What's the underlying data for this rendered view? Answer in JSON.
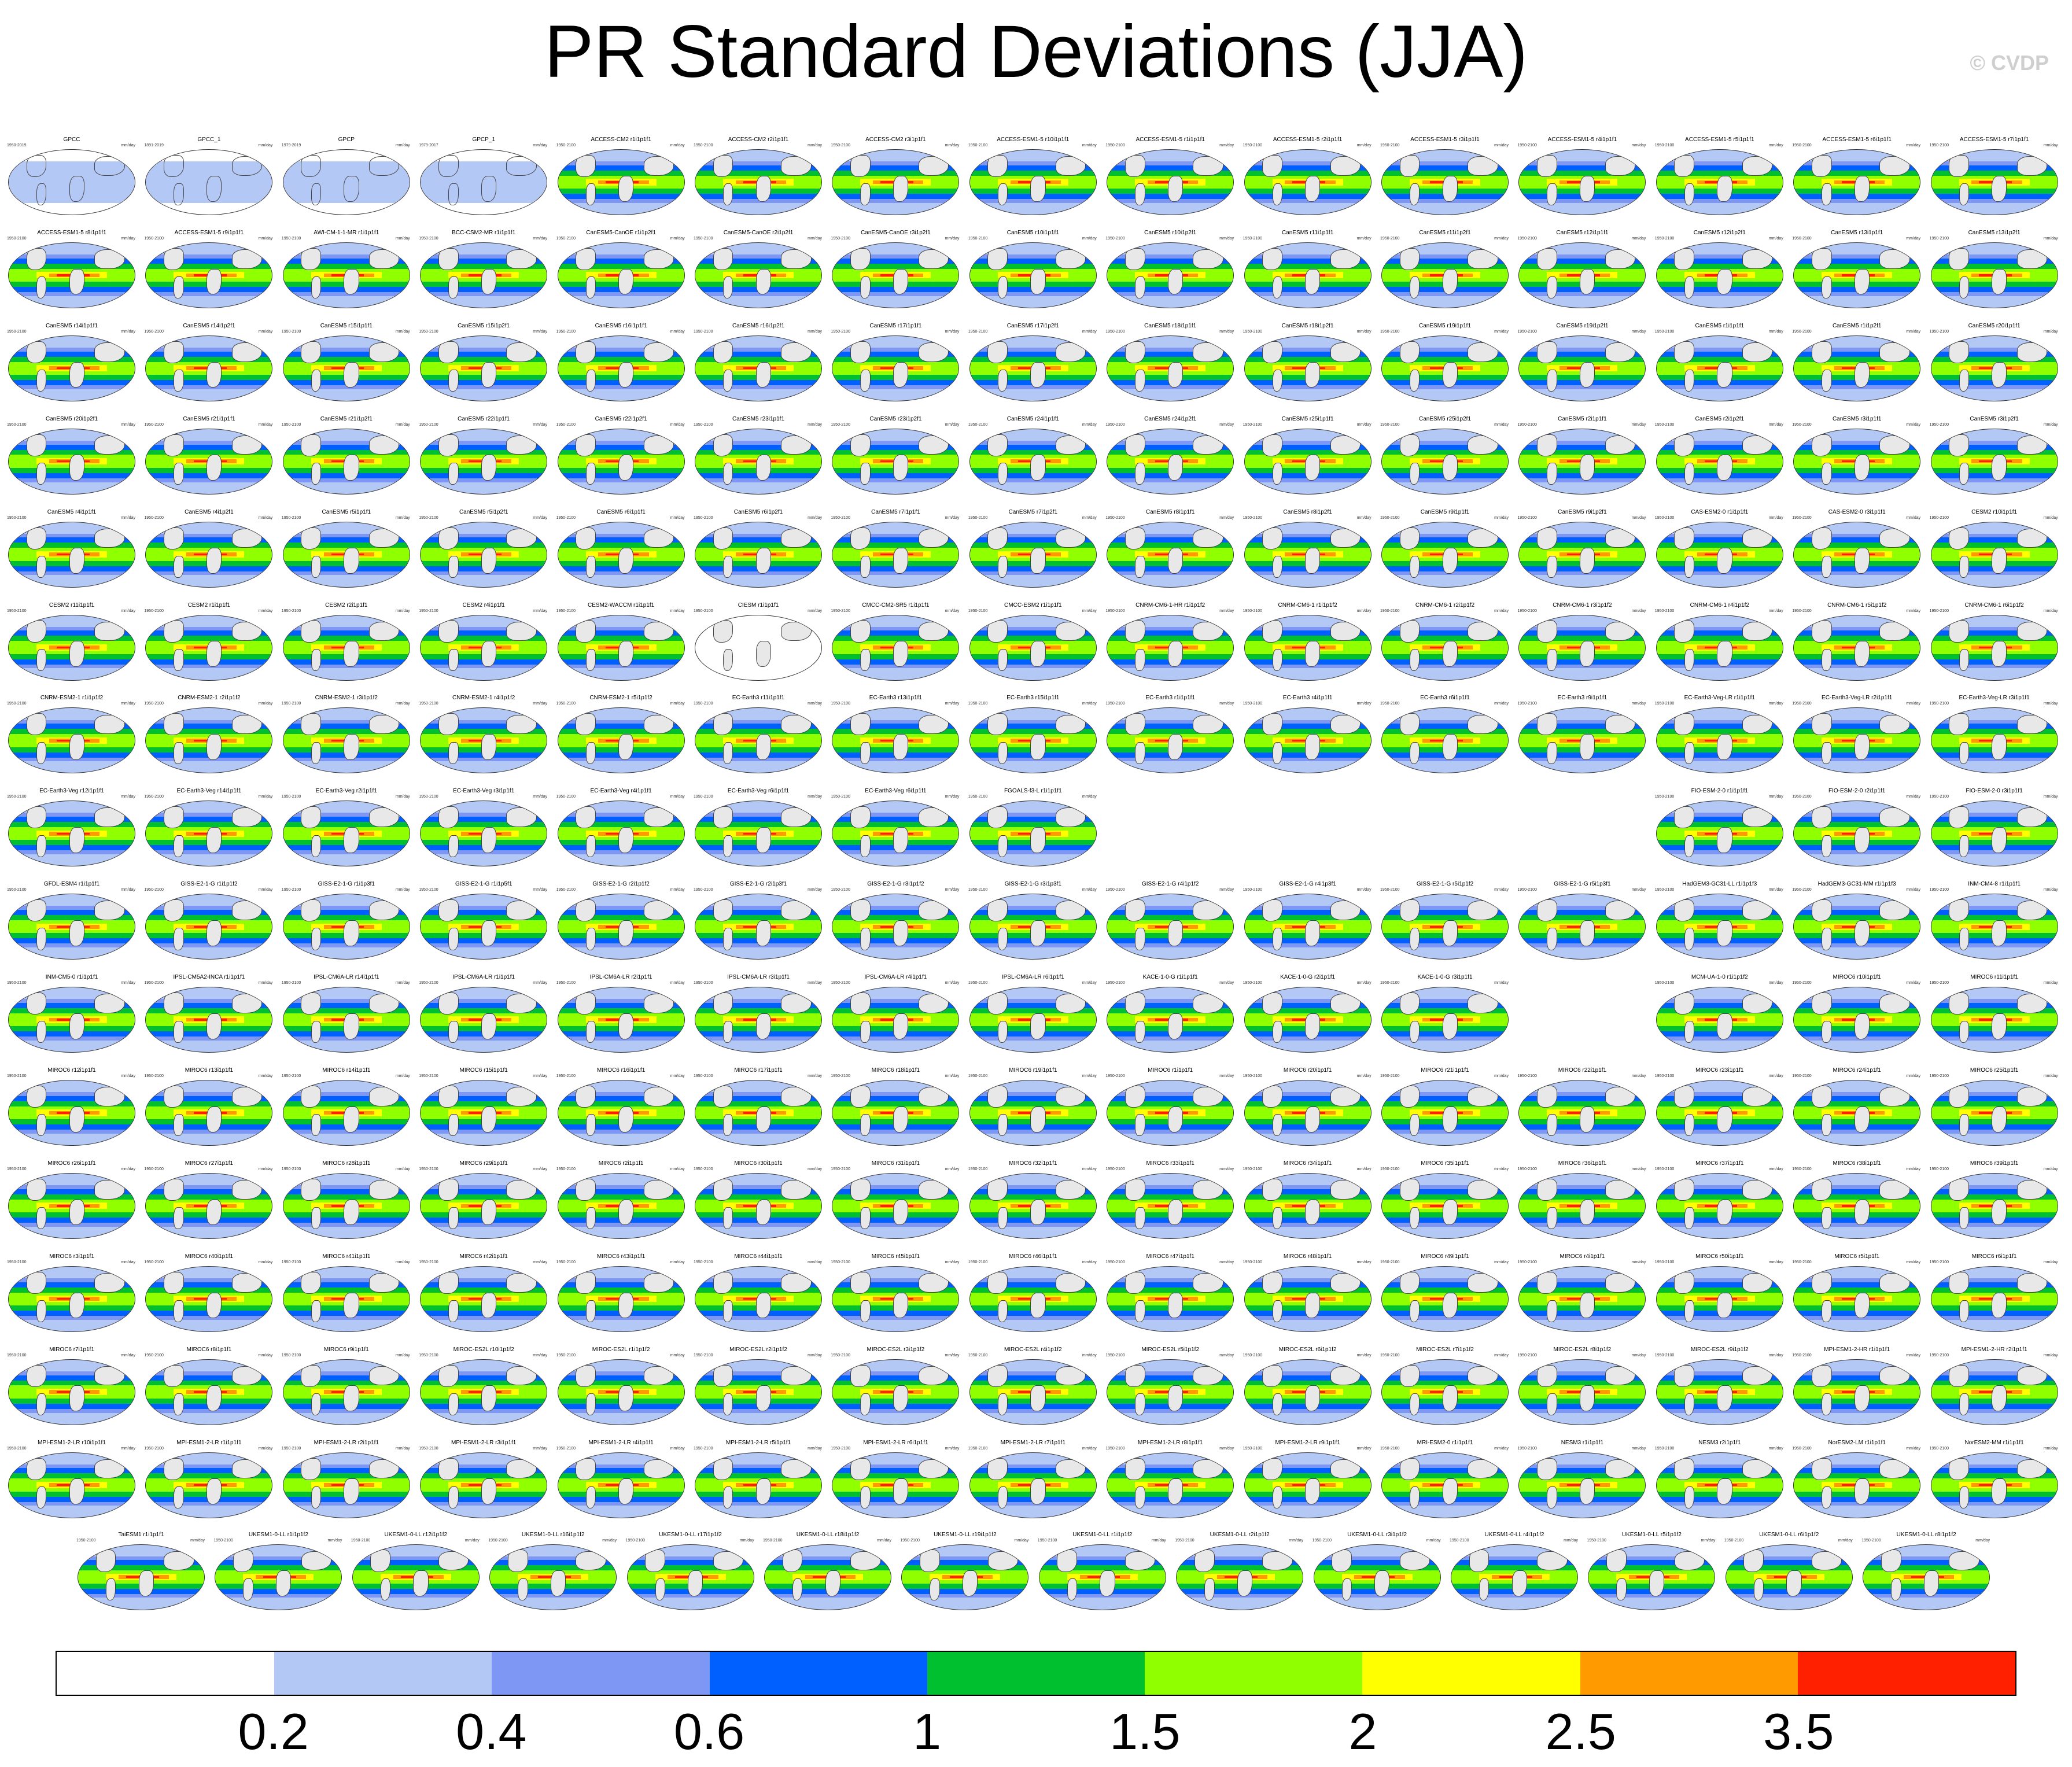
{
  "title": "PR Standard Deviations (JJA)",
  "watermark": "© CVDP",
  "units": "mm/day",
  "colorbar": {
    "colors": [
      "#ffffff",
      "#b4c8f5",
      "#7e96f4",
      "#0060ff",
      "#00c030",
      "#90ff00",
      "#ffff00",
      "#ff9a00",
      "#ff2000"
    ],
    "labels": [
      "0.2",
      "0.4",
      "0.6",
      "1",
      "1.5",
      "2",
      "2.5",
      "3.5"
    ]
  },
  "panels": [
    {
      "title": "GPCC",
      "years": "1950-2019",
      "style": "obs"
    },
    {
      "title": "GPCC_1",
      "years": "1891-2019",
      "style": "obs"
    },
    {
      "title": "GPCP",
      "years": "1979-2019",
      "style": "obs"
    },
    {
      "title": "GPCP_1",
      "years": "1979-2017",
      "style": "obs"
    },
    {
      "title": "ACCESS-CM2 r1i1p1f1",
      "years": "1950-2100"
    },
    {
      "title": "ACCESS-CM2 r2i1p1f1",
      "years": "1950-2100"
    },
    {
      "title": "ACCESS-CM2 r3i1p1f1",
      "years": "1950-2100"
    },
    {
      "title": "ACCESS-ESM1-5 r10i1p1f1",
      "years": "1950-2100"
    },
    {
      "title": "ACCESS-ESM1-5 r1i1p1f1",
      "years": "1950-2100"
    },
    {
      "title": "ACCESS-ESM1-5 r2i1p1f1",
      "years": "1950-2100"
    },
    {
      "title": "ACCESS-ESM1-5 r3i1p1f1",
      "years": "1950-2100"
    },
    {
      "title": "ACCESS-ESM1-5 r4i1p1f1",
      "years": "1950-2100"
    },
    {
      "title": "ACCESS-ESM1-5 r5i1p1f1",
      "years": "1950-2100"
    },
    {
      "title": "ACCESS-ESM1-5 r6i1p1f1",
      "years": "1950-2100"
    },
    {
      "title": "ACCESS-ESM1-5 r7i1p1f1",
      "years": "1950-2100"
    },
    {
      "title": "ACCESS-ESM1-5 r8i1p1f1",
      "years": "1950-2100"
    },
    {
      "title": "ACCESS-ESM1-5 r9i1p1f1",
      "years": "1950-2100"
    },
    {
      "title": "AWI-CM-1-1-MR r1i1p1f1",
      "years": "1950-2100"
    },
    {
      "title": "BCC-CSM2-MR r1i1p1f1",
      "years": "1950-2100"
    },
    {
      "title": "CanESM5-CanOE r1i1p2f1",
      "years": "1950-2100"
    },
    {
      "title": "CanESM5-CanOE r2i1p2f1",
      "years": "1950-2100"
    },
    {
      "title": "CanESM5-CanOE r3i1p2f1",
      "years": "1950-2100"
    },
    {
      "title": "CanESM5 r10i1p1f1",
      "years": "1950-2100"
    },
    {
      "title": "CanESM5 r10i1p2f1",
      "years": "1950-2100"
    },
    {
      "title": "CanESM5 r11i1p1f1",
      "years": "1950-2100"
    },
    {
      "title": "CanESM5 r11i1p2f1",
      "years": "1950-2100"
    },
    {
      "title": "CanESM5 r12i1p1f1",
      "years": "1950-2100"
    },
    {
      "title": "CanESM5 r12i1p2f1",
      "years": "1950-2100"
    },
    {
      "title": "CanESM5 r13i1p1f1",
      "years": "1950-2100"
    },
    {
      "title": "CanESM5 r13i1p2f1",
      "years": "1950-2100"
    },
    {
      "title": "CanESM5 r14i1p1f1",
      "years": "1950-2100"
    },
    {
      "title": "CanESM5 r14i1p2f1",
      "years": "1950-2100"
    },
    {
      "title": "CanESM5 r15i1p1f1",
      "years": "1950-2100"
    },
    {
      "title": "CanESM5 r15i1p2f1",
      "years": "1950-2100"
    },
    {
      "title": "CanESM5 r16i1p1f1",
      "years": "1950-2100"
    },
    {
      "title": "CanESM5 r16i1p2f1",
      "years": "1950-2100"
    },
    {
      "title": "CanESM5 r17i1p1f1",
      "years": "1950-2100"
    },
    {
      "title": "CanESM5 r17i1p2f1",
      "years": "1950-2100"
    },
    {
      "title": "CanESM5 r18i1p1f1",
      "years": "1950-2100"
    },
    {
      "title": "CanESM5 r18i1p2f1",
      "years": "1950-2100"
    },
    {
      "title": "CanESM5 r19i1p1f1",
      "years": "1950-2100"
    },
    {
      "title": "CanESM5 r19i1p2f1",
      "years": "1950-2100"
    },
    {
      "title": "CanESM5 r1i1p1f1",
      "years": "1950-2100"
    },
    {
      "title": "CanESM5 r1i1p2f1",
      "years": "1950-2100"
    },
    {
      "title": "CanESM5 r20i1p1f1",
      "years": "1950-2100"
    },
    {
      "title": "CanESM5 r20i1p2f1",
      "years": "1950-2100"
    },
    {
      "title": "CanESM5 r21i1p1f1",
      "years": "1950-2100"
    },
    {
      "title": "CanESM5 r21i1p2f1",
      "years": "1950-2100"
    },
    {
      "title": "CanESM5 r22i1p1f1",
      "years": "1950-2100"
    },
    {
      "title": "CanESM5 r22i1p2f1",
      "years": "1950-2100"
    },
    {
      "title": "CanESM5 r23i1p1f1",
      "years": "1950-2100"
    },
    {
      "title": "CanESM5 r23i1p2f1",
      "years": "1950-2100"
    },
    {
      "title": "CanESM5 r24i1p1f1",
      "years": "1950-2100"
    },
    {
      "title": "CanESM5 r24i1p2f1",
      "years": "1950-2100"
    },
    {
      "title": "CanESM5 r25i1p1f1",
      "years": "1950-2100"
    },
    {
      "title": "CanESM5 r25i1p2f1",
      "years": "1950-2100"
    },
    {
      "title": "CanESM5 r2i1p1f1",
      "years": "1950-2100"
    },
    {
      "title": "CanESM5 r2i1p2f1",
      "years": "1950-2100"
    },
    {
      "title": "CanESM5 r3i1p1f1",
      "years": "1950-2100"
    },
    {
      "title": "CanESM5 r3i1p2f1",
      "years": "1950-2100"
    },
    {
      "title": "CanESM5 r4i1p1f1",
      "years": "1950-2100"
    },
    {
      "title": "CanESM5 r4i1p2f1",
      "years": "1950-2100"
    },
    {
      "title": "CanESM5 r5i1p1f1",
      "years": "1950-2100"
    },
    {
      "title": "CanESM5 r5i1p2f1",
      "years": "1950-2100"
    },
    {
      "title": "CanESM5 r6i1p1f1",
      "years": "1950-2100"
    },
    {
      "title": "CanESM5 r6i1p2f1",
      "years": "1950-2100"
    },
    {
      "title": "CanESM5 r7i1p1f1",
      "years": "1950-2100"
    },
    {
      "title": "CanESM5 r7i1p2f1",
      "years": "1950-2100"
    },
    {
      "title": "CanESM5 r8i1p1f1",
      "years": "1950-2100"
    },
    {
      "title": "CanESM5 r8i1p2f1",
      "years": "1950-2100"
    },
    {
      "title": "CanESM5 r9i1p1f1",
      "years": "1950-2100"
    },
    {
      "title": "CanESM5 r9i1p2f1",
      "years": "1950-2100"
    },
    {
      "title": "CAS-ESM2-0 r1i1p1f1",
      "years": "1950-2100"
    },
    {
      "title": "CAS-ESM2-0 r3i1p1f1",
      "years": "1950-2100"
    },
    {
      "title": "CESM2 r10i1p1f1",
      "years": "1950-2100"
    },
    {
      "title": "CESM2 r11i1p1f1",
      "years": "1950-2100"
    },
    {
      "title": "CESM2 r1i1p1f1",
      "years": "1950-2100"
    },
    {
      "title": "CESM2 r2i1p1f1",
      "years": "1950-2100"
    },
    {
      "title": "CESM2 r4i1p1f1",
      "years": "1950-2100"
    },
    {
      "title": "CESM2-WACCM r1i1p1f1",
      "years": "1950-2100"
    },
    {
      "title": "CIESM r1i1p1f1",
      "years": "1950-2100",
      "style": "blank"
    },
    {
      "title": "CMCC-CM2-SR5 r1i1p1f1",
      "years": "1950-2100"
    },
    {
      "title": "CMCC-ESM2 r1i1p1f1",
      "years": "1950-2100"
    },
    {
      "title": "CNRM-CM6-1-HR r1i1p1f2",
      "years": "1950-2100"
    },
    {
      "title": "CNRM-CM6-1 r1i1p1f2",
      "years": "1950-2100"
    },
    {
      "title": "CNRM-CM6-1 r2i1p1f2",
      "years": "1950-2100"
    },
    {
      "title": "CNRM-CM6-1 r3i1p1f2",
      "years": "1950-2100"
    },
    {
      "title": "CNRM-CM6-1 r4i1p1f2",
      "years": "1950-2100"
    },
    {
      "title": "CNRM-CM6-1 r5i1p1f2",
      "years": "1950-2100"
    },
    {
      "title": "CNRM-CM6-1 r6i1p1f2",
      "years": "1950-2100"
    },
    {
      "title": "CNRM-ESM2-1 r1i1p1f2",
      "years": "1950-2100"
    },
    {
      "title": "CNRM-ESM2-1 r2i1p1f2",
      "years": "1950-2100"
    },
    {
      "title": "CNRM-ESM2-1 r3i1p1f2",
      "years": "1950-2100"
    },
    {
      "title": "CNRM-ESM2-1 r4i1p1f2",
      "years": "1950-2100"
    },
    {
      "title": "CNRM-ESM2-1 r5i1p1f2",
      "years": "1950-2100"
    },
    {
      "title": "EC-Earth3 r11i1p1f1",
      "years": "1950-2100"
    },
    {
      "title": "EC-Earth3 r13i1p1f1",
      "years": "1950-2100"
    },
    {
      "title": "EC-Earth3 r15i1p1f1",
      "years": "1950-2100"
    },
    {
      "title": "EC-Earth3 r1i1p1f1",
      "years": "1950-2100"
    },
    {
      "title": "EC-Earth3 r4i1p1f1",
      "years": "1950-2100"
    },
    {
      "title": "EC-Earth3 r6i1p1f1",
      "years": "1950-2100"
    },
    {
      "title": "EC-Earth3 r9i1p1f1",
      "years": "1950-2100"
    },
    {
      "title": "EC-Earth3-Veg-LR r1i1p1f1",
      "years": "1950-2100"
    },
    {
      "title": "EC-Earth3-Veg-LR r2i1p1f1",
      "years": "1950-2100"
    },
    {
      "title": "EC-Earth3-Veg-LR r3i1p1f1",
      "years": "1950-2100"
    },
    {
      "title": "EC-Earth3-Veg r12i1p1f1",
      "years": "1950-2100"
    },
    {
      "title": "EC-Earth3-Veg r14i1p1f1",
      "years": "1950-2100"
    },
    {
      "title": "EC-Earth3-Veg r2i1p1f1",
      "years": "1950-2100"
    },
    {
      "title": "EC-Earth3-Veg r3i1p1f1",
      "years": "1950-2100"
    },
    {
      "title": "EC-Earth3-Veg r4i1p1f1",
      "years": "1950-2100"
    },
    {
      "title": "EC-Earth3-Veg r6i1p1f1",
      "years": "1950-2100"
    },
    {
      "title": "EC-Earth3-Veg r6i1p1f1",
      "years": "1950-2100"
    },
    {
      "title": "FGOALS-f3-L r1i1p1f1",
      "years": "1950-2100"
    },
    null,
    null,
    null,
    null,
    {
      "title": "FIO-ESM-2-0 r1i1p1f1",
      "years": "1950-2100"
    },
    {
      "title": "FIO-ESM-2-0 r2i1p1f1",
      "years": "1950-2100"
    },
    {
      "title": "FIO-ESM-2-0 r3i1p1f1",
      "years": "1950-2100"
    },
    {
      "title": "GFDL-ESM4 r1i1p1f1",
      "years": "1950-2100"
    },
    {
      "title": "GISS-E2-1-G r1i1p1f2",
      "years": "1950-2100"
    },
    {
      "title": "GISS-E2-1-G r1i1p3f1",
      "years": "1950-2100"
    },
    {
      "title": "GISS-E2-1-G r1i1p5f1",
      "years": "1950-2100"
    },
    {
      "title": "GISS-E2-1-G r2i1p1f2",
      "years": "1950-2100"
    },
    {
      "title": "GISS-E2-1-G r2i1p3f1",
      "years": "1950-2100"
    },
    {
      "title": "GISS-E2-1-G r3i1p1f2",
      "years": "1950-2100"
    },
    {
      "title": "GISS-E2-1-G r3i1p3f1",
      "years": "1950-2100"
    },
    {
      "title": "GISS-E2-1-G r4i1p1f2",
      "years": "1950-2100"
    },
    {
      "title": "GISS-E2-1-G r4i1p3f1",
      "years": "1950-2100"
    },
    {
      "title": "GISS-E2-1-G r5i1p1f2",
      "years": "1950-2100"
    },
    {
      "title": "GISS-E2-1-G r5i1p3f1",
      "years": "1950-2100"
    },
    {
      "title": "HadGEM3-GC31-LL r1i1p1f3",
      "years": "1950-2100"
    },
    {
      "title": "HadGEM3-GC31-MM r1i1p1f3",
      "years": "1950-2100"
    },
    {
      "title": "INM-CM4-8 r1i1p1f1",
      "years": "1950-2100"
    },
    {
      "title": "INM-CM5-0 r1i1p1f1",
      "years": "1950-2100"
    },
    {
      "title": "IPSL-CM5A2-INCA r1i1p1f1",
      "years": "1950-2100"
    },
    {
      "title": "IPSL-CM6A-LR r14i1p1f1",
      "years": "1950-2100"
    },
    {
      "title": "IPSL-CM6A-LR r1i1p1f1",
      "years": "1950-2100"
    },
    {
      "title": "IPSL-CM6A-LR r2i1p1f1",
      "years": "1950-2100"
    },
    {
      "title": "IPSL-CM6A-LR r3i1p1f1",
      "years": "1950-2100"
    },
    {
      "title": "IPSL-CM6A-LR r4i1p1f1",
      "years": "1950-2100"
    },
    {
      "title": "IPSL-CM6A-LR r6i1p1f1",
      "years": "1950-2100"
    },
    {
      "title": "KACE-1-0-G r1i1p1f1",
      "years": "1950-2100"
    },
    {
      "title": "KACE-1-0-G r2i1p1f1",
      "years": "1950-2100"
    },
    {
      "title": "KACE-1-0-G r3i1p1f1",
      "years": "1950-2100"
    },
    null,
    {
      "title": "MCM-UA-1-0 r1i1p1f2",
      "years": "1950-2100"
    },
    {
      "title": "MIROC6 r10i1p1f1",
      "years": "1950-2100"
    },
    {
      "title": "MIROC6 r11i1p1f1",
      "years": "1950-2100"
    },
    {
      "title": "MIROC6 r12i1p1f1",
      "years": "1950-2100"
    },
    {
      "title": "MIROC6 r13i1p1f1",
      "years": "1950-2100"
    },
    {
      "title": "MIROC6 r14i1p1f1",
      "years": "1950-2100"
    },
    {
      "title": "MIROC6 r15i1p1f1",
      "years": "1950-2100"
    },
    {
      "title": "MIROC6 r16i1p1f1",
      "years": "1950-2100"
    },
    {
      "title": "MIROC6 r17i1p1f1",
      "years": "1950-2100"
    },
    {
      "title": "MIROC6 r18i1p1f1",
      "years": "1950-2100"
    },
    {
      "title": "MIROC6 r19i1p1f1",
      "years": "1950-2100"
    },
    {
      "title": "MIROC6 r1i1p1f1",
      "years": "1950-2100"
    },
    {
      "title": "MIROC6 r20i1p1f1",
      "years": "1950-2100"
    },
    {
      "title": "MIROC6 r21i1p1f1",
      "years": "1950-2100"
    },
    {
      "title": "MIROC6 r22i1p1f1",
      "years": "1950-2100"
    },
    {
      "title": "MIROC6 r23i1p1f1",
      "years": "1950-2100"
    },
    {
      "title": "MIROC6 r24i1p1f1",
      "years": "1950-2100"
    },
    {
      "title": "MIROC6 r25i1p1f1",
      "years": "1950-2100"
    },
    {
      "title": "MIROC6 r26i1p1f1",
      "years": "1950-2100"
    },
    {
      "title": "MIROC6 r27i1p1f1",
      "years": "1950-2100"
    },
    {
      "title": "MIROC6 r28i1p1f1",
      "years": "1950-2100"
    },
    {
      "title": "MIROC6 r29i1p1f1",
      "years": "1950-2100"
    },
    {
      "title": "MIROC6 r2i1p1f1",
      "years": "1950-2100"
    },
    {
      "title": "MIROC6 r30i1p1f1",
      "years": "1950-2100"
    },
    {
      "title": "MIROC6 r31i1p1f1",
      "years": "1950-2100"
    },
    {
      "title": "MIROC6 r32i1p1f1",
      "years": "1950-2100"
    },
    {
      "title": "MIROC6 r33i1p1f1",
      "years": "1950-2100"
    },
    {
      "title": "MIROC6 r34i1p1f1",
      "years": "1950-2100"
    },
    {
      "title": "MIROC6 r35i1p1f1",
      "years": "1950-2100"
    },
    {
      "title": "MIROC6 r36i1p1f1",
      "years": "1950-2100"
    },
    {
      "title": "MIROC6 r37i1p1f1",
      "years": "1950-2100"
    },
    {
      "title": "MIROC6 r38i1p1f1",
      "years": "1950-2100"
    },
    {
      "title": "MIROC6 r39i1p1f1",
      "years": "1950-2100"
    },
    {
      "title": "MIROC6 r3i1p1f1",
      "years": "1950-2100"
    },
    {
      "title": "MIROC6 r40i1p1f1",
      "years": "1950-2100"
    },
    {
      "title": "MIROC6 r41i1p1f1",
      "years": "1950-2100"
    },
    {
      "title": "MIROC6 r42i1p1f1",
      "years": "1950-2100"
    },
    {
      "title": "MIROC6 r43i1p1f1",
      "years": "1950-2100"
    },
    {
      "title": "MIROC6 r44i1p1f1",
      "years": "1950-2100"
    },
    {
      "title": "MIROC6 r45i1p1f1",
      "years": "1950-2100"
    },
    {
      "title": "MIROC6 r46i1p1f1",
      "years": "1950-2100"
    },
    {
      "title": "MIROC6 r47i1p1f1",
      "years": "1950-2100"
    },
    {
      "title": "MIROC6 r48i1p1f1",
      "years": "1950-2100"
    },
    {
      "title": "MIROC6 r49i1p1f1",
      "years": "1950-2100"
    },
    {
      "title": "MIROC6 r4i1p1f1",
      "years": "1950-2100"
    },
    {
      "title": "MIROC6 r50i1p1f1",
      "years": "1950-2100"
    },
    {
      "title": "MIROC6 r5i1p1f1",
      "years": "1950-2100"
    },
    {
      "title": "MIROC6 r6i1p1f1",
      "years": "1950-2100"
    },
    {
      "title": "MIROC6 r7i1p1f1",
      "years": "1950-2100"
    },
    {
      "title": "MIROC6 r8i1p1f1",
      "years": "1950-2100"
    },
    {
      "title": "MIROC6 r9i1p1f1",
      "years": "1950-2100"
    },
    {
      "title": "MIROC-ES2L r10i1p1f2",
      "years": "1950-2100"
    },
    {
      "title": "MIROC-ES2L r1i1p1f2",
      "years": "1950-2100"
    },
    {
      "title": "MIROC-ES2L r2i1p1f2",
      "years": "1950-2100"
    },
    {
      "title": "MIROC-ES2L r3i1p1f2",
      "years": "1950-2100"
    },
    {
      "title": "MIROC-ES2L r4i1p1f2",
      "years": "1950-2100"
    },
    {
      "title": "MIROC-ES2L r5i1p1f2",
      "years": "1950-2100"
    },
    {
      "title": "MIROC-ES2L r6i1p1f2",
      "years": "1950-2100"
    },
    {
      "title": "MIROC-ES2L r7i1p1f2",
      "years": "1950-2100"
    },
    {
      "title": "MIROC-ES2L r8i1p1f2",
      "years": "1950-2100"
    },
    {
      "title": "MIROC-ES2L r9i1p1f2",
      "years": "1950-2100"
    },
    {
      "title": "MPI-ESM1-2-HR r1i1p1f1",
      "years": "1950-2100"
    },
    {
      "title": "MPI-ESM1-2-HR r2i1p1f1",
      "years": "1950-2100"
    },
    {
      "title": "MPI-ESM1-2-LR r10i1p1f1",
      "years": "1950-2100"
    },
    {
      "title": "MPI-ESM1-2-LR r1i1p1f1",
      "years": "1950-2100"
    },
    {
      "title": "MPI-ESM1-2-LR r2i1p1f1",
      "years": "1950-2100"
    },
    {
      "title": "MPI-ESM1-2-LR r3i1p1f1",
      "years": "1950-2100"
    },
    {
      "title": "MPI-ESM1-2-LR r4i1p1f1",
      "years": "1950-2100"
    },
    {
      "title": "MPI-ESM1-2-LR r5i1p1f1",
      "years": "1950-2100"
    },
    {
      "title": "MPI-ESM1-2-LR r6i1p1f1",
      "years": "1950-2100"
    },
    {
      "title": "MPI-ESM1-2-LR r7i1p1f1",
      "years": "1950-2100"
    },
    {
      "title": "MPI-ESM1-2-LR r8i1p1f1",
      "years": "1950-2100"
    },
    {
      "title": "MPI-ESM1-2-LR r9i1p1f1",
      "years": "1950-2100"
    },
    {
      "title": "MRI-ESM2-0 r1i1p1f1",
      "years": "1950-2100"
    },
    {
      "title": "NESM3 r1i1p1f1",
      "years": "1950-2100"
    },
    {
      "title": "NESM3 r2i1p1f1",
      "years": "1950-2100"
    },
    {
      "title": "NorESM2-LM r1i1p1f1",
      "years": "1950-2100"
    },
    {
      "title": "NorESM2-MM r1i1p1f1",
      "years": "1950-2100"
    }
  ],
  "last_row": [
    {
      "title": "TaiESM1 r1i1p1f1",
      "years": "1950-2100"
    },
    {
      "title": "UKESM1-0-LL r1i1p1f2",
      "years": "1950-2100"
    },
    {
      "title": "UKESM1-0-LL r12i1p1f2",
      "years": "1950-2100"
    },
    {
      "title": "UKESM1-0-LL r16i1p1f2",
      "years": "1950-2100"
    },
    {
      "title": "UKESM1-0-LL r17i1p1f2",
      "years": "1950-2100"
    },
    {
      "title": "UKESM1-0-LL r18i1p1f2",
      "years": "1950-2100"
    },
    {
      "title": "UKESM1-0-LL r19i1p1f2",
      "years": "1950-2100"
    },
    {
      "title": "UKESM1-0-LL r1i1p1f2",
      "years": "1950-2100"
    },
    {
      "title": "UKESM1-0-LL r2i1p1f2",
      "years": "1950-2100"
    },
    {
      "title": "UKESM1-0-LL r3i1p1f2",
      "years": "1950-2100"
    },
    {
      "title": "UKESM1-0-LL r4i1p1f2",
      "years": "1950-2100"
    },
    {
      "title": "UKESM1-0-LL r5i1p1f2",
      "years": "1950-2100"
    },
    {
      "title": "UKESM1-0-LL r6i1p1f2",
      "years": "1950-2100"
    },
    {
      "title": "UKESM1-0-LL r8i1p1f2",
      "years": "1950-2100"
    }
  ]
}
